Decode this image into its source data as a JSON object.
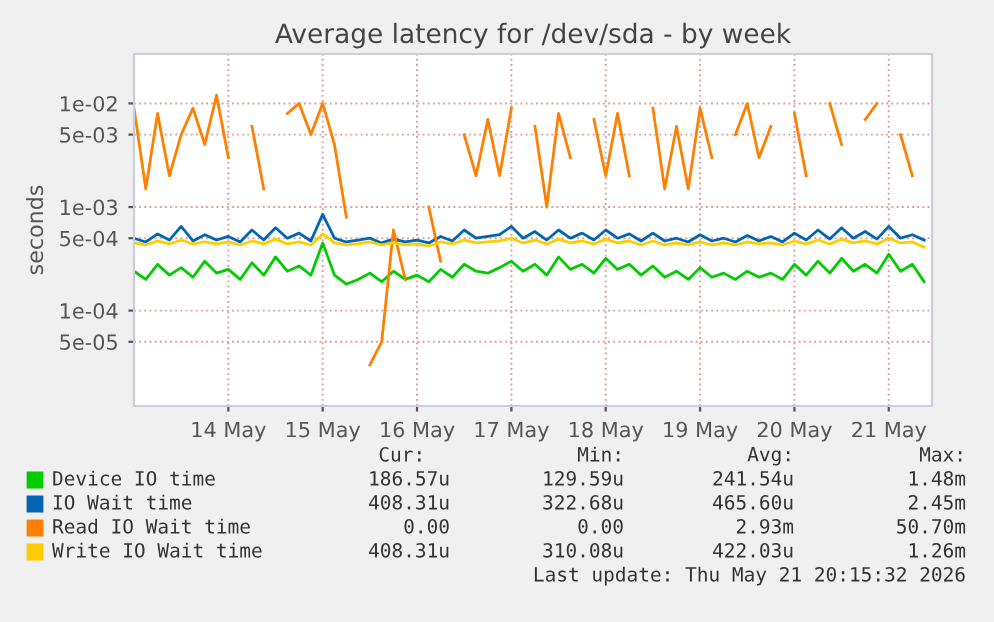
{
  "chart_data": {
    "type": "line",
    "title": "Average latency for /dev/sda - by week",
    "ylabel": "seconds",
    "x": [
      "2026-05-13T00:00",
      "2026-05-13T03:00",
      "2026-05-13T06:00",
      "2026-05-13T09:00",
      "2026-05-13T12:00",
      "2026-05-13T15:00",
      "2026-05-13T18:00",
      "2026-05-13T21:00",
      "2026-05-14T00:00",
      "2026-05-14T03:00",
      "2026-05-14T06:00",
      "2026-05-14T09:00",
      "2026-05-14T12:00",
      "2026-05-14T15:00",
      "2026-05-14T18:00",
      "2026-05-14T21:00",
      "2026-05-15T00:00",
      "2026-05-15T03:00",
      "2026-05-15T06:00",
      "2026-05-15T09:00",
      "2026-05-15T12:00",
      "2026-05-15T15:00",
      "2026-05-15T18:00",
      "2026-05-15T21:00",
      "2026-05-16T00:00",
      "2026-05-16T03:00",
      "2026-05-16T06:00",
      "2026-05-16T09:00",
      "2026-05-16T12:00",
      "2026-05-16T15:00",
      "2026-05-16T18:00",
      "2026-05-16T21:00",
      "2026-05-17T00:00",
      "2026-05-17T03:00",
      "2026-05-17T06:00",
      "2026-05-17T09:00",
      "2026-05-17T12:00",
      "2026-05-17T15:00",
      "2026-05-17T18:00",
      "2026-05-17T21:00",
      "2026-05-18T00:00",
      "2026-05-18T03:00",
      "2026-05-18T06:00",
      "2026-05-18T09:00",
      "2026-05-18T12:00",
      "2026-05-18T15:00",
      "2026-05-18T18:00",
      "2026-05-18T21:00",
      "2026-05-19T00:00",
      "2026-05-19T03:00",
      "2026-05-19T06:00",
      "2026-05-19T09:00",
      "2026-05-19T12:00",
      "2026-05-19T15:00",
      "2026-05-19T18:00",
      "2026-05-19T21:00",
      "2026-05-20T00:00",
      "2026-05-20T03:00",
      "2026-05-20T06:00",
      "2026-05-20T09:00",
      "2026-05-20T12:00",
      "2026-05-20T15:00",
      "2026-05-20T18:00",
      "2026-05-20T21:00",
      "2026-05-21T00:00",
      "2026-05-21T03:00",
      "2026-05-21T06:00",
      "2026-05-21T09:00"
    ],
    "series": [
      {
        "name": "Device IO time",
        "color": "#00cc00",
        "values": [
          0.00024,
          0.0002,
          0.00028,
          0.00022,
          0.00026,
          0.00021,
          0.0003,
          0.00023,
          0.00025,
          0.0002,
          0.00029,
          0.00022,
          0.00033,
          0.00024,
          0.00027,
          0.00022,
          0.00045,
          0.00022,
          0.00018,
          0.0002,
          0.00023,
          0.00019,
          0.00024,
          0.0002,
          0.00022,
          0.00019,
          0.00025,
          0.00021,
          0.00028,
          0.00024,
          0.00023,
          0.00026,
          0.0003,
          0.00024,
          0.00028,
          0.00022,
          0.00033,
          0.00025,
          0.00028,
          0.00023,
          0.00032,
          0.00025,
          0.00028,
          0.00022,
          0.00027,
          0.00021,
          0.00024,
          0.0002,
          0.00026,
          0.00021,
          0.00023,
          0.0002,
          0.00024,
          0.00021,
          0.00023,
          0.0002,
          0.00028,
          0.00022,
          0.0003,
          0.00023,
          0.00032,
          0.00024,
          0.00028,
          0.00023,
          0.00035,
          0.00024,
          0.00028,
          0.00019
        ]
      },
      {
        "name": "IO Wait time",
        "color": "#0066b3",
        "values": [
          0.0005,
          0.00046,
          0.00055,
          0.00048,
          0.00065,
          0.00047,
          0.00054,
          0.00048,
          0.00052,
          0.00046,
          0.0006,
          0.00048,
          0.00063,
          0.0005,
          0.00056,
          0.00047,
          0.00085,
          0.0005,
          0.00046,
          0.00048,
          0.0005,
          0.00045,
          0.00049,
          0.00046,
          0.00048,
          0.00045,
          0.00052,
          0.00047,
          0.0006,
          0.0005,
          0.00052,
          0.00054,
          0.00065,
          0.0005,
          0.00058,
          0.00048,
          0.0006,
          0.0005,
          0.00056,
          0.00048,
          0.0006,
          0.0005,
          0.00055,
          0.00047,
          0.00056,
          0.00047,
          0.0005,
          0.00046,
          0.00054,
          0.00047,
          0.0005,
          0.00046,
          0.00053,
          0.00047,
          0.00052,
          0.00046,
          0.00056,
          0.00048,
          0.0006,
          0.00049,
          0.00063,
          0.0005,
          0.00058,
          0.00049,
          0.00065,
          0.0005,
          0.00054,
          0.00048
        ]
      },
      {
        "name": "Read IO Wait time",
        "color": "#ff8000",
        "values": [
          0.009,
          0.0015,
          0.008,
          0.002,
          0.005,
          0.009,
          0.004,
          0.012,
          0.003,
          null,
          0.006,
          0.0015,
          null,
          0.008,
          0.01,
          0.005,
          0.01,
          0.004,
          0.0008,
          null,
          3e-05,
          5e-05,
          0.0006,
          0.0002,
          null,
          0.001,
          0.0003,
          null,
          0.005,
          0.002,
          0.007,
          0.002,
          0.009,
          null,
          0.006,
          0.001,
          0.008,
          0.003,
          null,
          0.007,
          0.002,
          0.008,
          0.002,
          null,
          0.009,
          0.0015,
          0.006,
          0.0015,
          0.009,
          0.003,
          null,
          0.005,
          0.01,
          0.003,
          0.006,
          null,
          0.008,
          0.002,
          null,
          0.01,
          0.004,
          null,
          0.007,
          0.01,
          null,
          0.005,
          0.002,
          null
        ]
      },
      {
        "name": "Write IO Wait time",
        "color": "#ffcc00",
        "values": [
          0.00045,
          0.00043,
          0.00047,
          0.00044,
          0.00048,
          0.00044,
          0.00046,
          0.00044,
          0.00046,
          0.00043,
          0.00047,
          0.00044,
          0.00049,
          0.00044,
          0.00046,
          0.00043,
          0.00055,
          0.00045,
          0.00043,
          0.00044,
          0.00046,
          0.00043,
          0.00045,
          0.00043,
          0.00044,
          0.00042,
          0.00046,
          0.00044,
          0.00048,
          0.00045,
          0.00046,
          0.00047,
          0.0005,
          0.00045,
          0.00048,
          0.00044,
          0.00049,
          0.00045,
          0.00047,
          0.00044,
          0.00049,
          0.00045,
          0.00047,
          0.00043,
          0.00047,
          0.00043,
          0.00045,
          0.00043,
          0.00046,
          0.00043,
          0.00045,
          0.00043,
          0.00046,
          0.00044,
          0.00045,
          0.00043,
          0.00047,
          0.00044,
          0.00048,
          0.00044,
          0.00049,
          0.00045,
          0.00047,
          0.00044,
          0.0005,
          0.00045,
          0.00046,
          0.00041
        ]
      }
    ],
    "log": "y",
    "xlim": [
      "2026-05-13T00:00",
      "2026-05-21T11:00"
    ],
    "ylim": [
      1.2e-05,
      0.03
    ],
    "xticks": [
      {
        "value": "2026-05-14",
        "label": "14 May"
      },
      {
        "value": "2026-05-15",
        "label": "15 May"
      },
      {
        "value": "2026-05-16",
        "label": "16 May"
      },
      {
        "value": "2026-05-17",
        "label": "17 May"
      },
      {
        "value": "2026-05-18",
        "label": "18 May"
      },
      {
        "value": "2026-05-19",
        "label": "19 May"
      },
      {
        "value": "2026-05-20",
        "label": "20 May"
      },
      {
        "value": "2026-05-21",
        "label": "21 May"
      }
    ],
    "yticks": [
      {
        "value": 5e-05,
        "label": "5e-05"
      },
      {
        "value": 0.0001,
        "label": "1e-04"
      },
      {
        "value": 0.0005,
        "label": "5e-04"
      },
      {
        "value": 0.001,
        "label": "1e-03"
      },
      {
        "value": 0.005,
        "label": "5e-03"
      },
      {
        "value": 0.01,
        "label": "1e-02"
      }
    ],
    "grid": true,
    "legend": "bottom",
    "marker": "none",
    "line_style": "solid",
    "annotations": [
      "Cur:",
      "Min:",
      "Avg:",
      "Max:",
      "186.57u",
      "129.59u",
      "241.54u",
      "1.48m",
      "408.31u",
      "322.68u",
      "465.60u",
      "2.45m",
      "0.00",
      "0.00",
      "2.93m",
      "50.70m",
      "408.31u",
      "310.08u",
      "422.03u",
      "1.26m",
      "Last update: Thu May 21 20:15:32 2026"
    ]
  }
}
